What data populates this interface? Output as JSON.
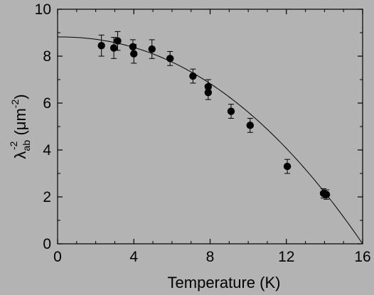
{
  "chart_data": {
    "type": "scatter",
    "xlabel": "Temperature (K)",
    "ylabel": {
      "symbol": "λ",
      "subscript": "ab",
      "superscript": "-2",
      "unit_open": "(μm",
      "unit_superscript": "-2",
      "unit_close": ")"
    },
    "xlim": [
      0,
      16
    ],
    "ylim": [
      0,
      10
    ],
    "x_ticks": [
      "0",
      "4",
      "8",
      "12",
      "16"
    ],
    "y_ticks": [
      "0",
      "2",
      "4",
      "6",
      "8",
      "10"
    ],
    "grid": false,
    "colors": {
      "background": "#b3b3b3",
      "marker": "#000000",
      "line": "#000000"
    },
    "series": [
      {
        "type": "scatter",
        "points": [
          {
            "x": 2.3,
            "y": 8.45,
            "err": 0.45
          },
          {
            "x": 2.95,
            "y": 8.35,
            "err": 0.45
          },
          {
            "x": 3.15,
            "y": 8.65,
            "err": 0.4
          },
          {
            "x": 3.95,
            "y": 8.4,
            "err": 0.3
          },
          {
            "x": 4.0,
            "y": 8.1,
            "err": 0.4
          },
          {
            "x": 4.95,
            "y": 8.3,
            "err": 0.4
          },
          {
            "x": 5.9,
            "y": 7.9,
            "err": 0.3
          },
          {
            "x": 7.1,
            "y": 7.15,
            "err": 0.3
          },
          {
            "x": 7.9,
            "y": 6.7,
            "err": 0.3
          },
          {
            "x": 7.9,
            "y": 6.45,
            "err": 0.3
          },
          {
            "x": 9.1,
            "y": 5.65,
            "err": 0.3
          },
          {
            "x": 10.1,
            "y": 5.05,
            "err": 0.3
          },
          {
            "x": 12.05,
            "y": 3.3,
            "err": 0.3
          },
          {
            "x": 13.95,
            "y": 2.15,
            "err": 0.2
          },
          {
            "x": 14.1,
            "y": 2.1,
            "err": 0.2
          }
        ]
      },
      {
        "type": "line",
        "fit": {
          "y0": 8.82,
          "tc": 16.0,
          "exponent": 2.15
        }
      }
    ]
  }
}
